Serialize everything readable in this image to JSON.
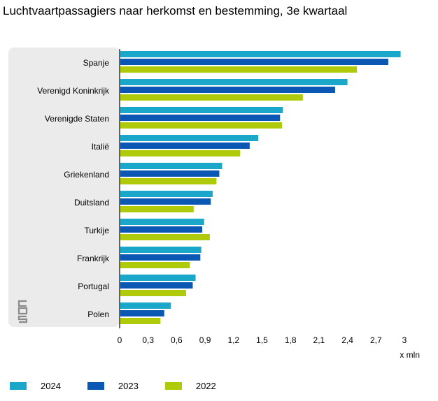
{
  "title": "Luchtvaartpassagiers naar herkomst en bestemming, 3e kwartaal",
  "logo": {
    "icon": "cbs-logo-icon"
  },
  "colors": {
    "panel": "#ebebeb",
    "axis": "#333333",
    "2024": "#1aa7c9",
    "2023": "#0a58b4",
    "2022": "#afca0b"
  },
  "chart_data": {
    "type": "bar",
    "orientation": "horizontal",
    "title": "Luchtvaartpassagiers naar herkomst en bestemming, 3e kwartaal",
    "xlabel": "x mln",
    "ylabel": "",
    "xlim": [
      0,
      3
    ],
    "xticks": [
      0,
      0.3,
      0.6,
      0.9,
      1.2,
      1.5,
      1.8,
      2.1,
      2.4,
      2.7,
      3
    ],
    "xtick_labels": [
      "0",
      "0,3",
      "0,6",
      "0,9",
      "1,2",
      "1,5",
      "1,8",
      "2,1",
      "2,4",
      "2,7",
      "3"
    ],
    "grid": false,
    "legend": "bottom-left",
    "categories": [
      "Spanje",
      "Verenigd Koninkrijk",
      "Verenigde Staten",
      "Italië",
      "Griekenland",
      "Duitsland",
      "Turkije",
      "Frankrijk",
      "Portugal",
      "Polen"
    ],
    "series": [
      {
        "name": "2024",
        "color": "#1aa7c9",
        "values": [
          2.96,
          2.4,
          1.72,
          1.46,
          1.08,
          0.98,
          0.89,
          0.86,
          0.8,
          0.54
        ]
      },
      {
        "name": "2023",
        "color": "#0a58b4",
        "values": [
          2.83,
          2.27,
          1.69,
          1.37,
          1.05,
          0.96,
          0.87,
          0.85,
          0.77,
          0.47
        ]
      },
      {
        "name": "2022",
        "color": "#afca0b",
        "values": [
          2.5,
          1.93,
          1.71,
          1.27,
          1.02,
          0.78,
          0.95,
          0.74,
          0.7,
          0.43
        ]
      }
    ]
  }
}
